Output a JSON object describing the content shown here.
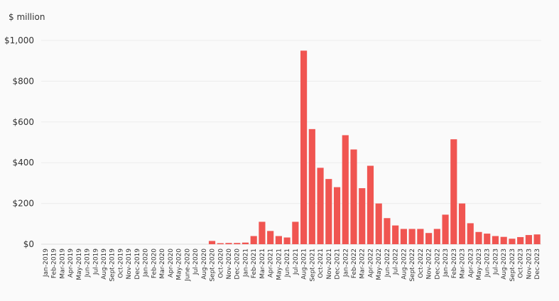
{
  "chart_data": {
    "type": "bar",
    "ylabel": "$ million",
    "ylim": [
      0,
      1000
    ],
    "yticks": [
      0,
      200,
      400,
      600,
      800,
      1000
    ],
    "ytick_labels": [
      "$0",
      "$200",
      "$400",
      "$600",
      "$800",
      "$1,000"
    ],
    "grid": true,
    "bar_color": "#f05551",
    "categories": [
      "Jan-2019",
      "Feb-2019",
      "Mar-2019",
      "Apr-2019",
      "May-2019",
      "Jun-2019",
      "Jul-2019",
      "Aug-2019",
      "Sept-2019",
      "Oct-2019",
      "Nov-2019",
      "Dec-2019",
      "Jan-2020",
      "Feb-2020",
      "Mar-2020",
      "Apr-2020",
      "May-2020",
      "June-2020",
      "Jul-2020",
      "Aug-2020",
      "Sept-2020",
      "Oct-2020",
      "Nov-2020",
      "Dec-2020",
      "Jan-2021",
      "Feb-2021",
      "Mar-2021",
      "Apr-2021",
      "May-2021",
      "Jun-2021",
      "Jul-2021",
      "Aug-2021",
      "Sept-2021",
      "Oct-2021",
      "Nov-2021",
      "Dec-2021",
      "Jan-2022",
      "Feb-2022",
      "Mar-2022",
      "Apr-2022",
      "May-2022",
      "Jun-2022",
      "Jul-2022",
      "Aug-2022",
      "Sept-2022",
      "Oct-2022",
      "Nov-2022",
      "Dec-2022",
      "Jan-2023",
      "Feb-2023",
      "Mar-2023",
      "Apr-2023",
      "May-2023",
      "Jun-2023",
      "Jul-2023",
      "Aug-2023",
      "Sept-2023",
      "Oct-2023",
      "Nov-2023",
      "Dec-2023"
    ],
    "values": [
      0,
      0,
      0,
      0,
      0,
      0,
      0,
      0,
      0,
      0,
      0,
      0,
      0,
      0,
      0,
      0,
      0,
      0,
      0,
      0,
      16,
      5,
      6,
      6,
      8,
      40,
      110,
      65,
      40,
      33,
      110,
      950,
      565,
      375,
      320,
      280,
      535,
      465,
      275,
      385,
      200,
      128,
      92,
      75,
      75,
      75,
      55,
      75,
      145,
      515,
      200,
      103,
      60,
      52,
      40,
      36,
      27,
      35,
      45,
      48
    ]
  }
}
